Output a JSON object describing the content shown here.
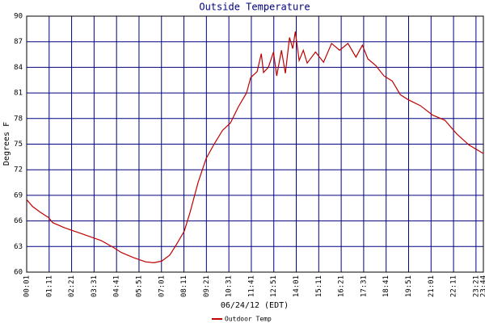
{
  "chart_data": {
    "type": "line",
    "title": "Outside Temperature",
    "ylabel": "Degrees F",
    "xlabel": "06/24/12 (EDT)",
    "xlim": [
      1,
      1424
    ],
    "ylim": [
      60,
      90
    ],
    "yticks": [
      60,
      63,
      66,
      69,
      72,
      75,
      78,
      81,
      84,
      87,
      90
    ],
    "xticks": [
      {
        "value": 1,
        "label": "00:01"
      },
      {
        "value": 71,
        "label": "01:11"
      },
      {
        "value": 141,
        "label": "02:21"
      },
      {
        "value": 211,
        "label": "03:31"
      },
      {
        "value": 281,
        "label": "04:41"
      },
      {
        "value": 351,
        "label": "05:51"
      },
      {
        "value": 421,
        "label": "07:01"
      },
      {
        "value": 491,
        "label": "08:11"
      },
      {
        "value": 561,
        "label": "09:21"
      },
      {
        "value": 631,
        "label": "10:31"
      },
      {
        "value": 701,
        "label": "11:41"
      },
      {
        "value": 771,
        "label": "12:51"
      },
      {
        "value": 841,
        "label": "14:01"
      },
      {
        "value": 911,
        "label": "15:11"
      },
      {
        "value": 981,
        "label": "16:21"
      },
      {
        "value": 1051,
        "label": "17:31"
      },
      {
        "value": 1121,
        "label": "18:41"
      },
      {
        "value": 1191,
        "label": "19:51"
      },
      {
        "value": 1261,
        "label": "21:01"
      },
      {
        "value": 1331,
        "label": "22:11"
      },
      {
        "value": 1401,
        "label": "23:21"
      },
      {
        "value": 1424,
        "label": "23:44"
      }
    ],
    "grid": true,
    "x": [
      1,
      19,
      44,
      69,
      82,
      119,
      157,
      195,
      233,
      271,
      296,
      334,
      372,
      397,
      422,
      447,
      467,
      492,
      510,
      535,
      560,
      585,
      611,
      636,
      661,
      686,
      699,
      719,
      732,
      739,
      754,
      770,
      780,
      795,
      807,
      820,
      830,
      838,
      850,
      863,
      875,
      901,
      926,
      951,
      976,
      1002,
      1027,
      1047,
      1064,
      1089,
      1114,
      1140,
      1165,
      1190,
      1228,
      1266,
      1304,
      1341,
      1379,
      1424
    ],
    "series": [
      {
        "name": "Outdoor Temp",
        "color": "#c00000",
        "values": [
          68.5,
          67.7,
          67.0,
          66.4,
          65.8,
          65.2,
          64.7,
          64.2,
          63.7,
          62.9,
          62.3,
          61.7,
          61.2,
          61.1,
          61.3,
          62.0,
          63.2,
          64.8,
          67.0,
          70.5,
          73.3,
          75.0,
          76.6,
          77.5,
          79.4,
          81.0,
          82.8,
          83.5,
          85.6,
          83.4,
          84.0,
          85.8,
          83.0,
          86.0,
          83.3,
          87.5,
          86.2,
          88.2,
          84.8,
          86.0,
          84.5,
          85.8,
          84.6,
          86.8,
          86.0,
          86.8,
          85.2,
          86.6,
          85.0,
          84.2,
          83.0,
          82.4,
          80.8,
          80.2,
          79.5,
          78.4,
          77.8,
          76.2,
          74.9,
          73.9
        ]
      }
    ]
  }
}
